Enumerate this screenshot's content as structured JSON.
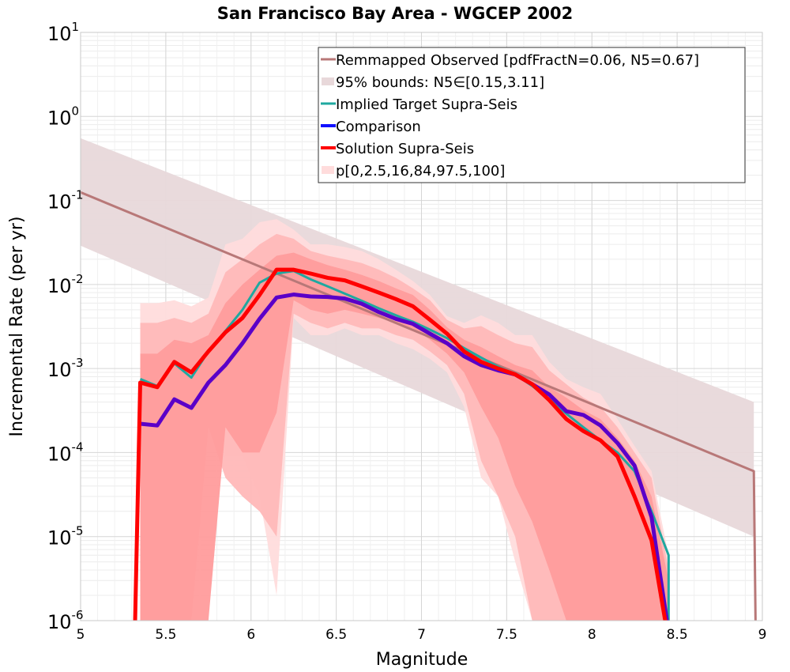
{
  "chart_data": {
    "type": "line",
    "title": "San Francisco Bay Area - WGCEP 2002",
    "xlabel": "Magnitude",
    "ylabel": "Incremental Rate (per yr)",
    "xlim": [
      5,
      9
    ],
    "ylim": [
      1e-06,
      10
    ],
    "yscale": "log",
    "grid": true,
    "legend_position": "top-right",
    "x_ticks": [
      "5",
      "5.5",
      "6",
      "6.5",
      "7",
      "7.5",
      "8",
      "8.5",
      "9"
    ],
    "y_ticks": [
      {
        "base": "10",
        "exp": "1"
      },
      {
        "base": "10",
        "exp": "0"
      },
      {
        "base": "10",
        "exp": "-1"
      },
      {
        "base": "10",
        "exp": "-2"
      },
      {
        "base": "10",
        "exp": "-3"
      },
      {
        "base": "10",
        "exp": "-4"
      },
      {
        "base": "10",
        "exp": "-5"
      },
      {
        "base": "10",
        "exp": "-6"
      }
    ],
    "legend": [
      {
        "label": "Remmapped Observed [pdfFractN=0.06, N5=0.67]",
        "color": "#b87878",
        "style": "line"
      },
      {
        "label": "95% bounds: N5∈[0.15,3.11]",
        "color": "#e8d8da",
        "style": "band"
      },
      {
        "label": "Implied Target Supra-Seis",
        "color": "#1fa8a0",
        "style": "line"
      },
      {
        "label": "Comparison",
        "color": "#1010ff",
        "style": "line"
      },
      {
        "label": "Solution Supra-Seis",
        "color": "#ff0000",
        "style": "line"
      },
      {
        "label": "p[0,2.5,16,84,97.5,100]",
        "color": "#ffdcdc",
        "style": "band"
      }
    ],
    "series": [
      {
        "name": "Remmapped Observed [pdfFractN=0.06, N5=0.67]",
        "color": "#b87878",
        "x": [
          5.0,
          8.95,
          8.95,
          8.96
        ],
        "y": [
          0.125,
          6e-05,
          6e-05,
          1e-06
        ]
      },
      {
        "name": "Implied Target Supra-Seis",
        "color": "#1fa8a0",
        "x": [
          5.35,
          5.45,
          5.55,
          5.65,
          5.75,
          5.85,
          5.95,
          6.05,
          6.15,
          6.25,
          6.35,
          6.45,
          6.55,
          6.65,
          6.75,
          6.85,
          6.95,
          7.05,
          7.15,
          7.25,
          7.35,
          7.45,
          7.55,
          7.65,
          7.75,
          7.85,
          7.95,
          8.05,
          8.15,
          8.25,
          8.35,
          8.45,
          8.45
        ],
        "y": [
          0.00075,
          0.00062,
          0.00115,
          0.00078,
          0.0016,
          0.0028,
          0.005,
          0.0105,
          0.0135,
          0.0145,
          0.0115,
          0.0095,
          0.0078,
          0.0064,
          0.0052,
          0.0043,
          0.0036,
          0.0029,
          0.0023,
          0.00175,
          0.00135,
          0.00105,
          0.00085,
          0.00062,
          0.00043,
          0.00029,
          0.0002,
          0.00014,
          0.0001,
          6e-05,
          2e-05,
          6e-06,
          1e-06
        ]
      },
      {
        "name": "Comparison",
        "color": "#5a00c8",
        "x": [
          5.35,
          5.45,
          5.55,
          5.65,
          5.75,
          5.85,
          5.95,
          6.05,
          6.15,
          6.25,
          6.35,
          6.45,
          6.55,
          6.65,
          6.75,
          6.85,
          6.95,
          7.05,
          7.15,
          7.25,
          7.35,
          7.45,
          7.55,
          7.65,
          7.75,
          7.85,
          7.95,
          8.05,
          8.15,
          8.25,
          8.35,
          8.44
        ],
        "y": [
          0.00022,
          0.00021,
          0.00043,
          0.00034,
          0.00068,
          0.0011,
          0.002,
          0.0039,
          0.007,
          0.0076,
          0.0072,
          0.0071,
          0.0068,
          0.0059,
          0.0047,
          0.0039,
          0.0034,
          0.0026,
          0.002,
          0.0014,
          0.0011,
          0.00095,
          0.00085,
          0.00065,
          0.00049,
          0.00031,
          0.00028,
          0.00021,
          0.00013,
          7e-05,
          1.7e-05,
          1e-06
        ]
      },
      {
        "name": "Solution Supra-Seis",
        "color": "#ff0000",
        "x": [
          5.32,
          5.35,
          5.45,
          5.55,
          5.65,
          5.75,
          5.85,
          5.95,
          6.05,
          6.15,
          6.25,
          6.35,
          6.45,
          6.55,
          6.65,
          6.75,
          6.85,
          6.95,
          7.05,
          7.15,
          7.25,
          7.35,
          7.45,
          7.55,
          7.65,
          7.75,
          7.85,
          7.95,
          8.05,
          8.15,
          8.25,
          8.35,
          8.43
        ],
        "y": [
          1e-06,
          0.00068,
          0.0006,
          0.0012,
          0.0009,
          0.0016,
          0.0027,
          0.004,
          0.0075,
          0.015,
          0.015,
          0.0135,
          0.012,
          0.0112,
          0.0095,
          0.008,
          0.0067,
          0.0055,
          0.0038,
          0.0026,
          0.0016,
          0.0012,
          0.001,
          0.00085,
          0.00065,
          0.00042,
          0.00025,
          0.00018,
          0.00014,
          9e-05,
          3e-05,
          9e-06,
          1e-06
        ]
      }
    ],
    "bands": [
      {
        "name": "95% bounds: N5∈[0.15,3.11]",
        "color": "#e8d8da",
        "x": [
          5.0,
          8.95
        ],
        "lower": [
          0.029,
          1e-05
        ],
        "upper": [
          0.55,
          0.0004
        ]
      },
      {
        "name": "p 0-100",
        "color": "#ffdcdc",
        "x": [
          5.35,
          5.45,
          5.55,
          5.65,
          5.75,
          5.85,
          5.95,
          6.05,
          6.15,
          6.25,
          6.35,
          6.45,
          6.55,
          6.65,
          6.75,
          6.85,
          6.95,
          7.05,
          7.15,
          7.25,
          7.35,
          7.45,
          7.55,
          7.65,
          7.75,
          7.85,
          7.95,
          8.05,
          8.15,
          8.25,
          8.35,
          8.45
        ],
        "lower": [
          1e-06,
          1e-06,
          1e-06,
          1e-06,
          0.0006,
          9e-05,
          9e-05,
          3e-05,
          2e-06,
          0.004,
          0.0025,
          0.0025,
          0.003,
          0.0025,
          0.0025,
          0.002,
          0.0017,
          0.0013,
          0.0009,
          0.00035,
          5e-05,
          3e-05,
          5e-06,
          1e-06,
          1e-06,
          1e-06,
          1e-06,
          1e-06,
          1e-06,
          1e-06,
          1e-06,
          1e-06
        ],
        "upper": [
          0.006,
          0.006,
          0.0065,
          0.0055,
          0.007,
          0.03,
          0.035,
          0.055,
          0.06,
          0.045,
          0.03,
          0.03,
          0.028,
          0.025,
          0.02,
          0.015,
          0.011,
          0.0075,
          0.0042,
          0.0035,
          0.0043,
          0.0035,
          0.0025,
          0.0025,
          0.0012,
          0.00075,
          0.0006,
          0.0005,
          0.00025,
          0.00012,
          6e-05,
          6e-06
        ]
      },
      {
        "name": "p 2.5-97.5",
        "color": "#ffb8b8",
        "x": [
          5.35,
          5.45,
          5.55,
          5.65,
          5.75,
          5.85,
          5.95,
          6.05,
          6.15,
          6.25,
          6.35,
          6.45,
          6.55,
          6.65,
          6.75,
          6.85,
          6.95,
          7.05,
          7.15,
          7.25,
          7.35,
          7.45,
          7.55,
          7.65,
          7.75,
          7.85,
          7.95,
          8.05,
          8.15,
          8.25,
          8.35,
          8.45
        ],
        "lower": [
          1e-06,
          1e-06,
          1e-06,
          1e-06,
          0.0002,
          5e-05,
          3e-05,
          2e-05,
          1e-05,
          0.0045,
          0.0035,
          0.003,
          0.0035,
          0.003,
          0.003,
          0.0025,
          0.0022,
          0.0016,
          0.0011,
          0.0005,
          8e-05,
          3e-05,
          1e-05,
          1e-06,
          1e-06,
          1e-06,
          1e-06,
          1e-06,
          1e-06,
          1e-06,
          1e-06,
          1e-06
        ],
        "upper": [
          0.0035,
          0.0035,
          0.004,
          0.0035,
          0.0045,
          0.014,
          0.02,
          0.03,
          0.04,
          0.035,
          0.025,
          0.022,
          0.02,
          0.018,
          0.015,
          0.012,
          0.009,
          0.0065,
          0.0038,
          0.003,
          0.0032,
          0.0025,
          0.002,
          0.0018,
          0.00095,
          0.00065,
          0.00045,
          0.00035,
          0.0002,
          0.0001,
          5e-05,
          4e-06
        ]
      },
      {
        "name": "p 16-84",
        "color": "#ff9c9c",
        "x": [
          5.35,
          5.45,
          5.55,
          5.65,
          5.75,
          5.85,
          5.95,
          6.05,
          6.15,
          6.25,
          6.35,
          6.45,
          6.55,
          6.65,
          6.75,
          6.85,
          6.95,
          7.05,
          7.15,
          7.25,
          7.35,
          7.45,
          7.55,
          7.65,
          7.75,
          7.85,
          7.95,
          8.05,
          8.15,
          8.25,
          8.35,
          8.45
        ],
        "lower": [
          1e-06,
          1e-06,
          1e-06,
          1e-06,
          1e-06,
          0.0002,
          0.0001,
          0.0001,
          0.0003,
          0.0065,
          0.005,
          0.0045,
          0.005,
          0.0045,
          0.004,
          0.0035,
          0.003,
          0.0022,
          0.0015,
          0.0009,
          0.00035,
          0.00015,
          4e-05,
          1.5e-05,
          4e-06,
          1e-06,
          1e-06,
          1e-06,
          1e-06,
          1e-06,
          1e-06,
          1e-06
        ],
        "upper": [
          0.0015,
          0.0015,
          0.0022,
          0.002,
          0.0025,
          0.006,
          0.01,
          0.015,
          0.022,
          0.024,
          0.02,
          0.017,
          0.015,
          0.013,
          0.011,
          0.009,
          0.0075,
          0.005,
          0.0031,
          0.0022,
          0.0018,
          0.0014,
          0.0011,
          0.00095,
          0.0006,
          0.00045,
          0.00032,
          0.00025,
          0.00015,
          8e-05,
          3e-05,
          3e-06
        ]
      }
    ]
  }
}
